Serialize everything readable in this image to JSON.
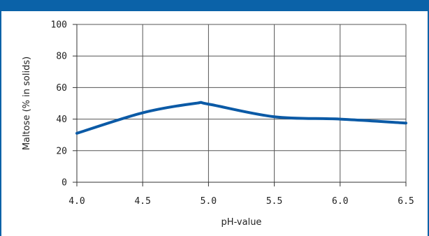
{
  "chart_data": {
    "type": "line",
    "title": "",
    "xlabel": "pH-value",
    "ylabel": "Maltose (% in solids)",
    "xlim": [
      4.0,
      6.5
    ],
    "ylim": [
      0,
      100
    ],
    "x_ticks": [
      4.0,
      4.5,
      5.0,
      5.5,
      6.0,
      6.5
    ],
    "x_tick_labels": [
      "4.0",
      "4.5",
      "5.0",
      "5.5",
      "6.0",
      "6.5"
    ],
    "y_ticks": [
      0,
      20,
      40,
      60,
      80,
      100
    ],
    "y_tick_labels": [
      "0",
      "20",
      "40",
      "60",
      "80",
      "100"
    ],
    "grid": true,
    "series": [
      {
        "color": "#0b5aa6",
        "x": [
          4.0,
          4.5,
          4.9,
          5.0,
          5.5,
          6.0,
          6.5
        ],
        "y": [
          31,
          44,
          50,
          49.5,
          41.5,
          40,
          37.5
        ]
      }
    ]
  }
}
